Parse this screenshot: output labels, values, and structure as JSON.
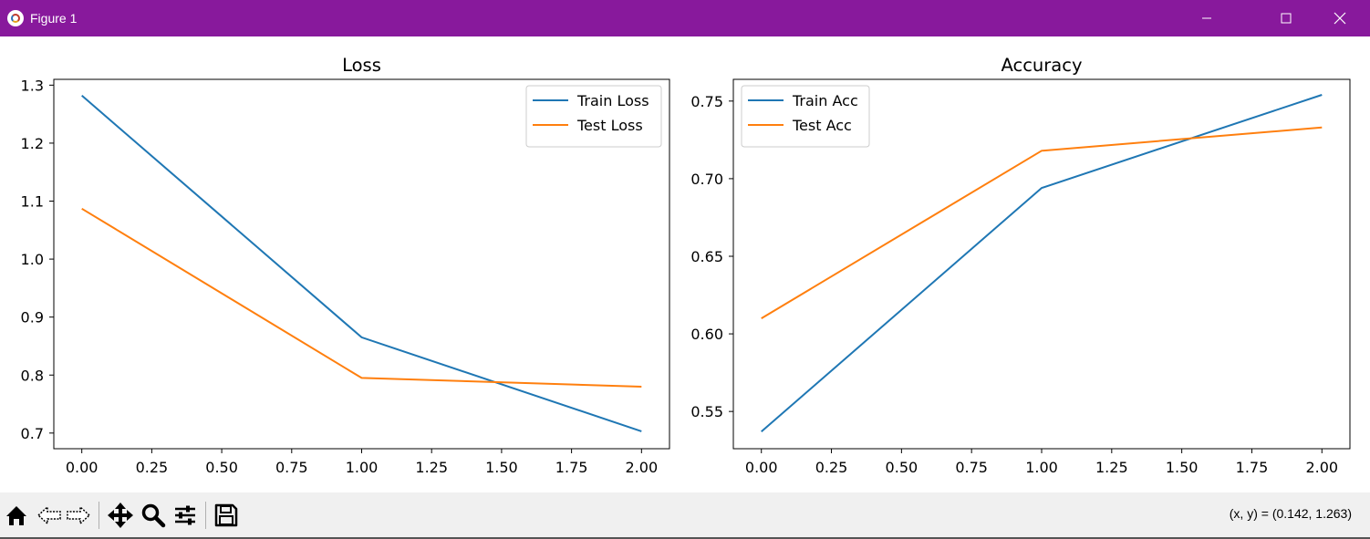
{
  "window": {
    "title": "Figure 1"
  },
  "toolbar": {
    "buttons": [
      "home-icon",
      "back-arrow-icon",
      "forward-arrow-icon",
      "pan-move-icon",
      "zoom-magnifier-icon",
      "configure-subplots-icon",
      "save-floppy-icon"
    ],
    "coordinates_readout": "(x, y) = (0.142, 1.263)"
  },
  "colors": {
    "titlebar": "#88199c",
    "series_blue": "#1f77b4",
    "series_orange": "#ff7f0e"
  },
  "chart_data": [
    {
      "type": "line",
      "title": "Loss",
      "xlabel": "",
      "ylabel": "",
      "x": [
        0,
        1,
        2
      ],
      "xlim": [
        -0.1,
        2.1
      ],
      "ylim": [
        0.673,
        1.31
      ],
      "xticks": [
        "0.00",
        "0.25",
        "0.50",
        "0.75",
        "1.00",
        "1.25",
        "1.50",
        "1.75",
        "2.00"
      ],
      "yticks": [
        "0.7",
        "0.8",
        "0.9",
        "1.0",
        "1.1",
        "1.2",
        "1.3"
      ],
      "grid": false,
      "legend": "upper right",
      "series": [
        {
          "name": "Train Loss",
          "color": "#1f77b4",
          "values": [
            1.282,
            0.865,
            0.703
          ]
        },
        {
          "name": "Test Loss",
          "color": "#ff7f0e",
          "values": [
            1.087,
            0.795,
            0.78
          ]
        }
      ]
    },
    {
      "type": "line",
      "title": "Accuracy",
      "xlabel": "",
      "ylabel": "",
      "x": [
        0,
        1,
        2
      ],
      "xlim": [
        -0.1,
        2.1
      ],
      "ylim": [
        0.526,
        0.764
      ],
      "xticks": [
        "0.00",
        "0.25",
        "0.50",
        "0.75",
        "1.00",
        "1.25",
        "1.50",
        "1.75",
        "2.00"
      ],
      "yticks": [
        "0.55",
        "0.60",
        "0.65",
        "0.70",
        "0.75"
      ],
      "grid": false,
      "legend": "upper left",
      "series": [
        {
          "name": "Train Acc",
          "color": "#1f77b4",
          "values": [
            0.537,
            0.694,
            0.754
          ]
        },
        {
          "name": "Test Acc",
          "color": "#ff7f0e",
          "values": [
            0.61,
            0.718,
            0.733
          ]
        }
      ]
    }
  ]
}
